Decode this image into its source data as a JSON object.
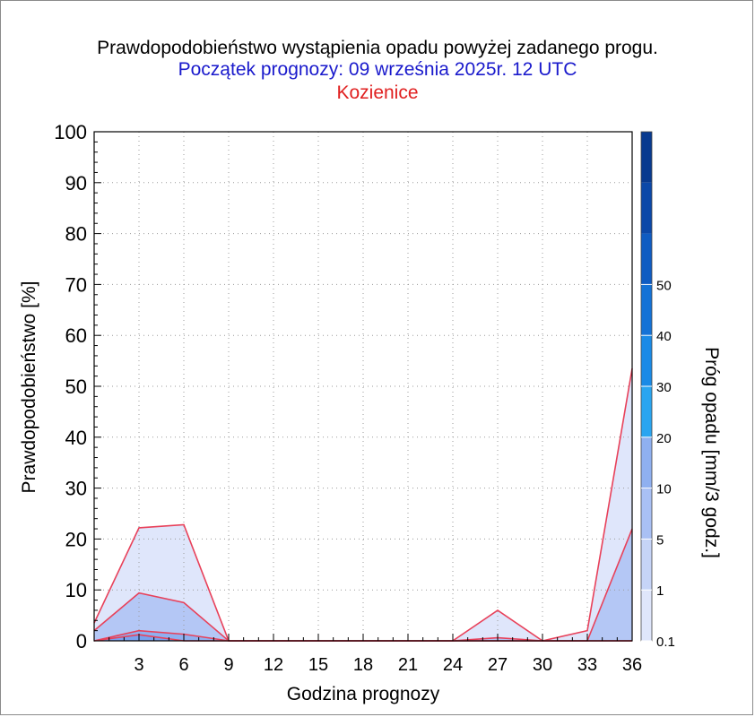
{
  "chart_data": {
    "type": "area",
    "title": "Prawdopodobieństwo wystąpienia opadu powyżej zadanego progu.",
    "subtitle": "Początek prognozy: 09 września 2025r. 12 UTC",
    "location": "Kozienice",
    "xlabel": "Godzina prognozy",
    "ylabel": "Prawdopodobieństwo [%]",
    "xlim": [
      0,
      36
    ],
    "ylim": [
      0,
      100
    ],
    "xticks": [
      3,
      6,
      9,
      12,
      15,
      18,
      21,
      24,
      27,
      30,
      33,
      36
    ],
    "yticks": [
      0,
      10,
      20,
      30,
      40,
      50,
      60,
      70,
      80,
      90,
      100
    ],
    "x": [
      0,
      3,
      6,
      9,
      12,
      15,
      18,
      21,
      24,
      27,
      30,
      33,
      36
    ],
    "grid": true,
    "series": [
      {
        "threshold": 0.1,
        "color": "#dfe6fb",
        "values": [
          3.5,
          22.2,
          22.8,
          0,
          0,
          0,
          0,
          0,
          0,
          6,
          0,
          2,
          53.5
        ]
      },
      {
        "threshold": 1,
        "color": "#b4c7f5",
        "values": [
          2,
          9.4,
          7.5,
          0,
          0,
          0,
          0,
          0,
          0,
          0.6,
          0,
          0,
          22
        ]
      },
      {
        "threshold": 5,
        "color": "#8fb0f0",
        "values": [
          0,
          2,
          1.3,
          0,
          0,
          0,
          0,
          0,
          0,
          0,
          0,
          0,
          0
        ]
      },
      {
        "threshold": 10,
        "color": "#7aa1ee",
        "values": [
          0,
          1.2,
          0,
          0,
          0,
          0,
          0,
          0,
          0,
          0,
          0,
          0,
          0
        ]
      }
    ],
    "line_color": "#e8415a",
    "colorbar": {
      "label": "Próg opadu [mm/3 godz.]",
      "ticks": [
        "0.1",
        "1",
        "5",
        "10",
        "20",
        "30",
        "40",
        "50"
      ],
      "bands": [
        {
          "from": 0.1,
          "to": 1,
          "color": "#dfe6fb"
        },
        {
          "from": 1,
          "to": 5,
          "color": "#c6d4f7"
        },
        {
          "from": 5,
          "to": 10,
          "color": "#a9c0f4"
        },
        {
          "from": 10,
          "to": 20,
          "color": "#8fb0f0"
        },
        {
          "from": 20,
          "to": 30,
          "color": "#2aa5f0"
        },
        {
          "from": 30,
          "to": 40,
          "color": "#1a8ae6"
        },
        {
          "from": 40,
          "to": 50,
          "color": "#1472d6"
        },
        {
          "from": 50,
          "to": 60,
          "color": "#0f5cc2"
        },
        {
          "from": 60,
          "to": 70,
          "color": "#0b48a8"
        },
        {
          "from": 70,
          "to": 80,
          "color": "#083a8f"
        }
      ]
    }
  }
}
